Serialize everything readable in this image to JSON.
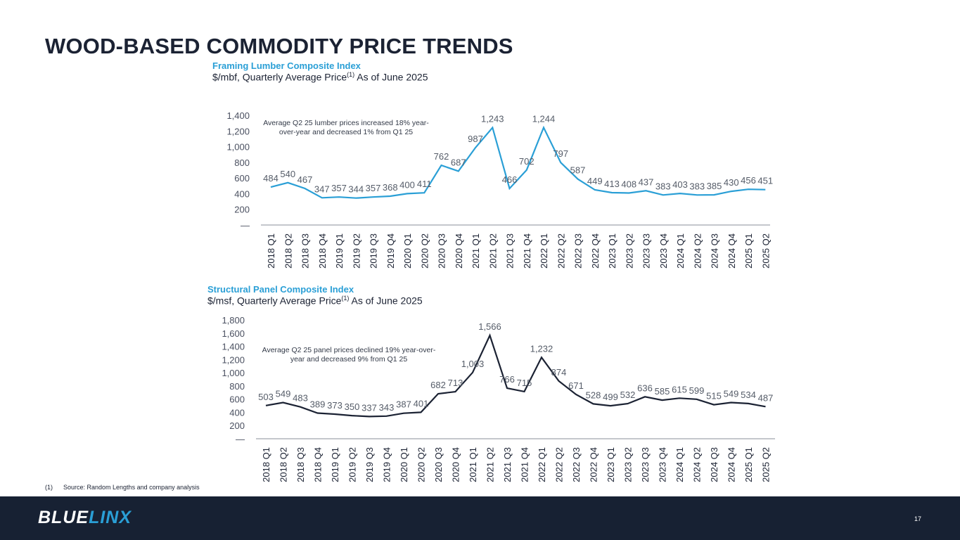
{
  "page": {
    "title": "WOOD-BASED COMMODITY PRICE TRENDS",
    "page_number": "17"
  },
  "footnote": {
    "marker": "(1)",
    "text": "Source:  Random Lengths and company analysis"
  },
  "brand": {
    "logo_part1": "BLUE",
    "logo_part2": "LINX",
    "colors": {
      "navy": "#172133",
      "blue": "#2a9fd6"
    }
  },
  "chart_data": [
    {
      "type": "line",
      "title": "Framing Lumber Composite Index",
      "subtitle": "$/mbf, Quarterly Average Price",
      "subtitle_sup": "(1)",
      "subtitle_suffix": " As of June 2025",
      "annotation": [
        "Average Q2 25 lumber prices increased 18% year-",
        "over-year and decreased 1% from Q1 25"
      ],
      "line_color": "#2a9fd6",
      "ylim": [
        0,
        1400
      ],
      "yticks": [
        "—",
        "200",
        "400",
        "600",
        "800",
        "1,000",
        "1,200",
        "1,400"
      ],
      "categories": [
        "2018 Q1",
        "2018 Q2",
        "2018 Q3",
        "2018 Q4",
        "2019 Q1",
        "2019 Q2",
        "2019 Q3",
        "2019 Q4",
        "2020 Q1",
        "2020 Q2",
        "2020 Q3",
        "2020 Q4",
        "2021 Q1",
        "2021 Q2",
        "2021 Q3",
        "2021 Q4",
        "2022 Q1",
        "2022 Q2",
        "2022 Q3",
        "2022 Q4",
        "2023 Q1",
        "2023 Q2",
        "2023 Q3",
        "2023 Q4",
        "2024 Q1",
        "2024 Q2",
        "2024 Q3",
        "2024 Q4",
        "2025 Q1",
        "2025 Q2"
      ],
      "values": [
        484,
        540,
        467,
        347,
        357,
        344,
        357,
        368,
        400,
        411,
        762,
        687,
        987,
        1243,
        466,
        702,
        1244,
        797,
        587,
        449,
        413,
        408,
        437,
        383,
        403,
        383,
        385,
        430,
        456,
        451
      ],
      "labels": [
        "484",
        "540",
        "467",
        "347",
        "357",
        "344",
        "357",
        "368",
        "400",
        "411",
        "762",
        "687",
        "987",
        "1,243",
        "466",
        "702",
        "1,244",
        "797",
        "587",
        "449",
        "413",
        "408",
        "437",
        "383",
        "403",
        "383",
        "385",
        "430",
        "456",
        "451"
      ]
    },
    {
      "type": "line",
      "title": "Structural Panel Composite Index",
      "subtitle": "$/msf, Quarterly Average Price",
      "subtitle_sup": "(1)",
      "subtitle_suffix": " As of June 2025",
      "annotation": [
        "Average Q2 25 panel prices declined 19% year-over-",
        "year and decreased 9% from Q1 25"
      ],
      "line_color": "#1b2233",
      "ylim": [
        0,
        1800
      ],
      "yticks": [
        "—",
        "200",
        "400",
        "600",
        "800",
        "1,000",
        "1,200",
        "1,400",
        "1,600",
        "1,800"
      ],
      "categories": [
        "2018 Q1",
        "2018 Q2",
        "2018 Q3",
        "2018 Q4",
        "2019 Q1",
        "2019 Q2",
        "2019 Q3",
        "2019 Q4",
        "2020 Q1",
        "2020 Q2",
        "2020 Q3",
        "2020 Q4",
        "2021 Q1",
        "2021 Q2",
        "2021 Q3",
        "2021 Q4",
        "2022 Q1",
        "2022 Q2",
        "2022 Q3",
        "2022 Q4",
        "2023 Q1",
        "2023 Q2",
        "2023 Q3",
        "2023 Q4",
        "2024 Q1",
        "2024 Q2",
        "2024 Q3",
        "2024 Q4",
        "2025 Q1",
        "2025 Q2"
      ],
      "values": [
        503,
        549,
        483,
        389,
        373,
        350,
        337,
        343,
        387,
        401,
        682,
        713,
        1003,
        1566,
        766,
        715,
        1232,
        874,
        671,
        528,
        499,
        532,
        636,
        585,
        615,
        599,
        515,
        549,
        534,
        487
      ],
      "labels": [
        "503",
        "549",
        "483",
        "389",
        "373",
        "350",
        "337",
        "343",
        "387",
        "401",
        "682",
        "713",
        "1,003",
        "1,566",
        "766",
        "715",
        "1,232",
        "874",
        "671",
        "528",
        "499",
        "532",
        "636",
        "585",
        "615",
        "599",
        "515",
        "549",
        "534",
        "487"
      ]
    }
  ]
}
